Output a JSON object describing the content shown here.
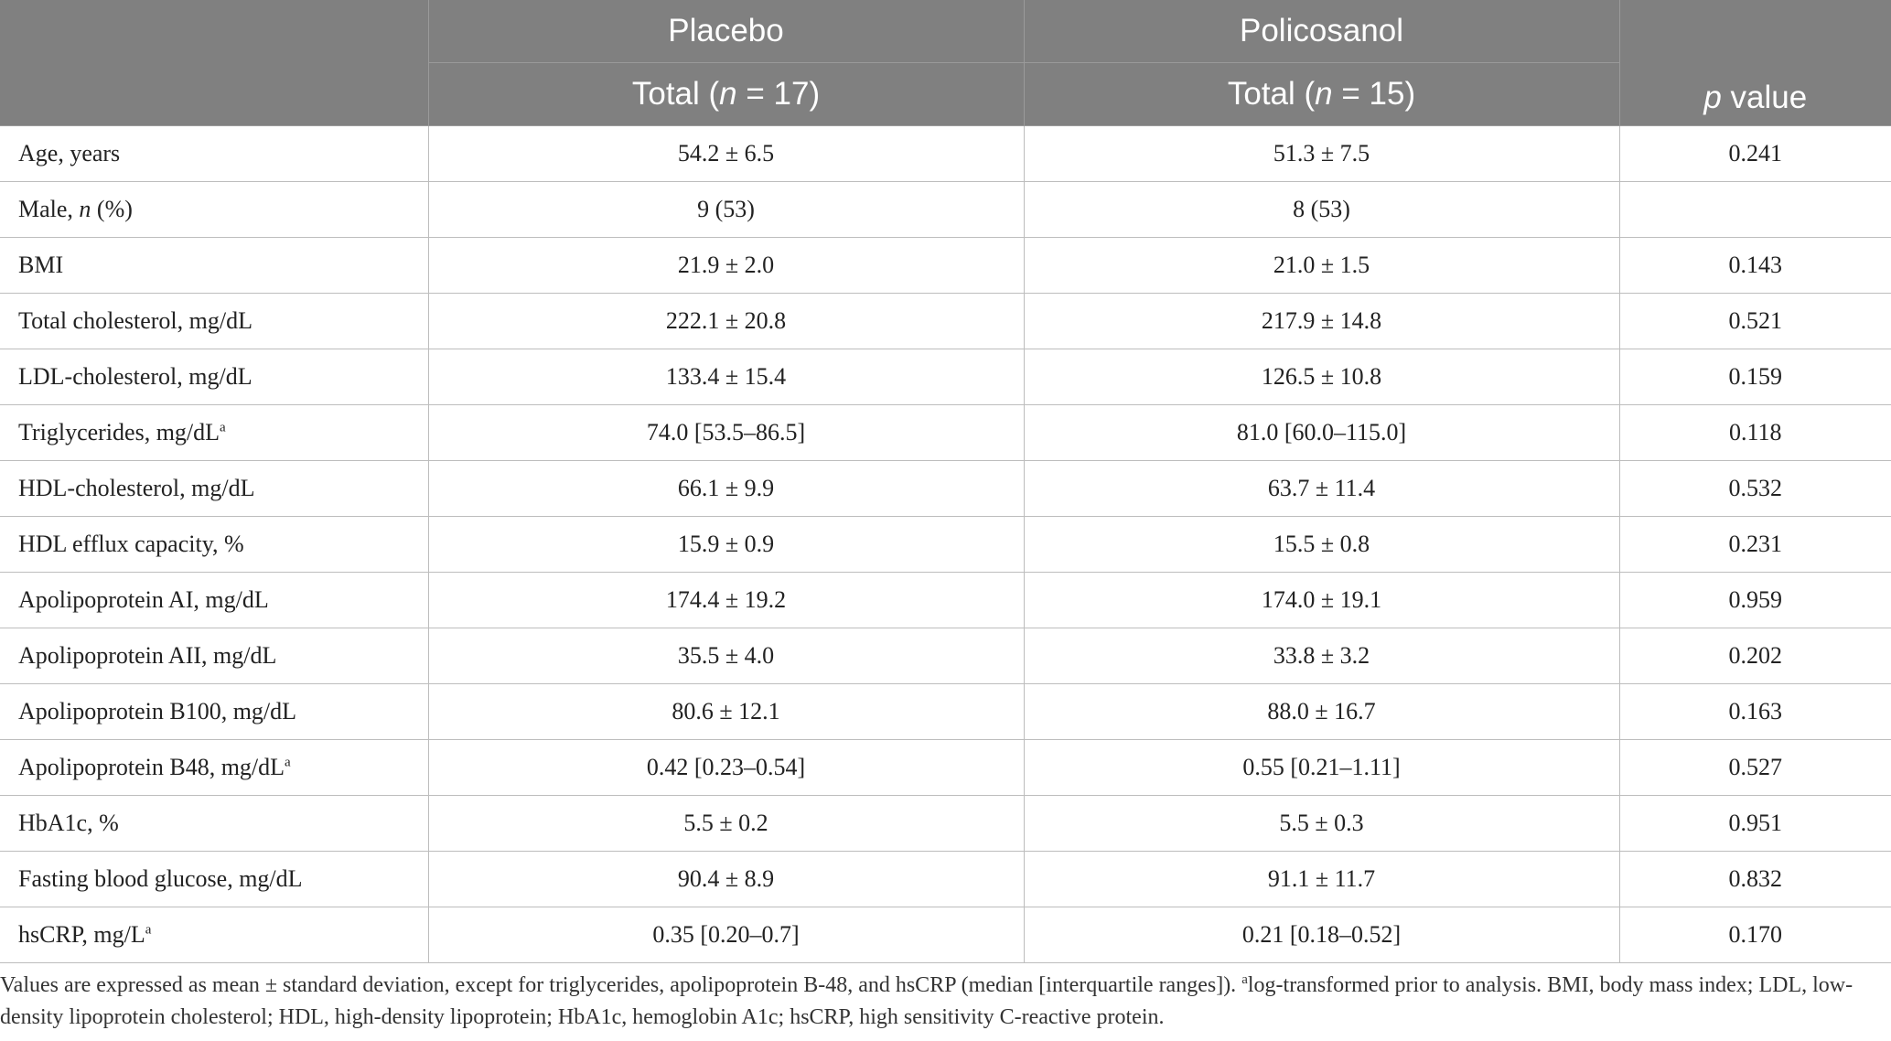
{
  "header": {
    "placebo_group": "Placebo",
    "policosanol_group": "Policosanol",
    "total_prefix": "Total (",
    "n_symbol": "n",
    "placebo_n_suffix": " = 17)",
    "policosanol_n_suffix": " = 15)",
    "p_symbol": "p",
    "p_suffix": " value"
  },
  "rows": [
    {
      "label": "Age, years",
      "placebo": "54.2 ± 6.5",
      "policosanol": "51.3 ± 7.5",
      "p": "0.241"
    },
    {
      "label_prefix": "Male, ",
      "label_italic": "n",
      "label_suffix": " (%)",
      "placebo": "9 (53)",
      "policosanol": "8 (53)",
      "p": ""
    },
    {
      "label": "BMI",
      "placebo": "21.9 ± 2.0",
      "policosanol": "21.0 ± 1.5",
      "p": "0.143"
    },
    {
      "label": "Total cholesterol, mg/dL",
      "placebo": "222.1 ± 20.8",
      "policosanol": "217.9 ± 14.8",
      "p": "0.521"
    },
    {
      "label": "LDL-cholesterol, mg/dL",
      "placebo": "133.4 ± 15.4",
      "policosanol": "126.5 ± 10.8",
      "p": "0.159"
    },
    {
      "label": "Triglycerides, mg/dL",
      "sup": "a",
      "placebo": "74.0 [53.5–86.5]",
      "policosanol": "81.0 [60.0–115.0]",
      "p": "0.118"
    },
    {
      "label": "HDL-cholesterol, mg/dL",
      "placebo": "66.1 ± 9.9",
      "policosanol": "63.7 ± 11.4",
      "p": "0.532"
    },
    {
      "label": "HDL efflux capacity, %",
      "placebo": "15.9 ± 0.9",
      "policosanol": "15.5 ± 0.8",
      "p": "0.231"
    },
    {
      "label": "Apolipoprotein AI, mg/dL",
      "placebo": "174.4 ± 19.2",
      "policosanol": "174.0 ± 19.1",
      "p": "0.959"
    },
    {
      "label": "Apolipoprotein AII, mg/dL",
      "placebo": "35.5 ± 4.0",
      "policosanol": "33.8 ± 3.2",
      "p": "0.202"
    },
    {
      "label": "Apolipoprotein B100, mg/dL",
      "placebo": "80.6 ± 12.1",
      "policosanol": "88.0 ± 16.7",
      "p": "0.163"
    },
    {
      "label": "Apolipoprotein B48, mg/dL",
      "sup": "a",
      "placebo": "0.42 [0.23–0.54]",
      "policosanol": "0.55 [0.21–1.11]",
      "p": "0.527"
    },
    {
      "label": "HbA1c, %",
      "placebo": "5.5 ± 0.2",
      "policosanol": "5.5 ± 0.3",
      "p": "0.951"
    },
    {
      "label": "Fasting blood glucose, mg/dL",
      "placebo": "90.4 ± 8.9",
      "policosanol": "91.1 ± 11.7",
      "p": "0.832"
    },
    {
      "label": "hsCRP, mg/L",
      "sup": "a",
      "placebo": "0.35 [0.20–0.7]",
      "policosanol": "0.21 [0.18–0.52]",
      "p": "0.170"
    }
  ],
  "footnote": {
    "part1": "Values are expressed as mean ± standard deviation, except for triglycerides, apolipoprotein B-48, and hsCRP (median [interquartile ranges]). ",
    "sup": "a",
    "part2": "log-transformed prior to analysis. BMI, body mass index; LDL, low-density lipoprotein cholesterol; HDL, high-density lipoprotein; HbA1c, hemoglobin A1c; hsCRP, high sensitivity C-reactive protein."
  }
}
